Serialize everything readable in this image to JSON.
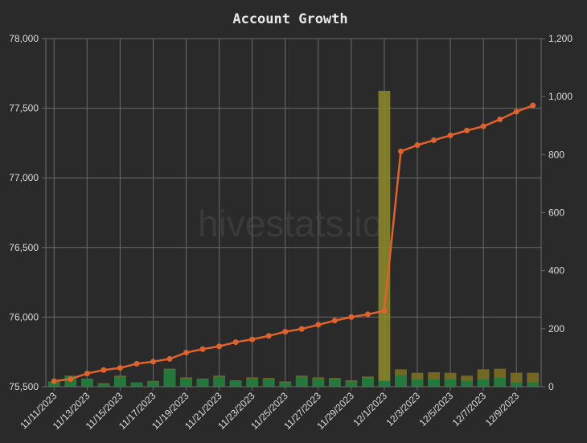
{
  "chart_data": {
    "type": "line",
    "title": "Account Growth",
    "watermark": "hivestats.io",
    "xlabel": "",
    "ylabel": "",
    "grid": true,
    "ylim": [
      75500,
      78000
    ],
    "y2lim": [
      0,
      1200
    ],
    "y_ticks": [
      "75,500",
      "76,000",
      "76,500",
      "77,000",
      "77,500",
      "78,000"
    ],
    "y2_ticks": [
      "0",
      "200",
      "400",
      "600",
      "800",
      "1,000",
      "1,200"
    ],
    "x_tick_labels": [
      "11/11/2023",
      "11/13/2023",
      "11/15/2023",
      "11/17/2023",
      "11/19/2023",
      "11/21/2023",
      "11/23/2023",
      "11/25/2023",
      "11/27/2023",
      "11/29/2023",
      "12/1/2023",
      "12/3/2023",
      "12/5/2023",
      "12/7/2023",
      "12/9/2023"
    ],
    "categories": [
      "11/11/2023",
      "11/12/2023",
      "11/13/2023",
      "11/14/2023",
      "11/15/2023",
      "11/16/2023",
      "11/17/2023",
      "11/18/2023",
      "11/19/2023",
      "11/20/2023",
      "11/21/2023",
      "11/22/2023",
      "11/23/2023",
      "11/24/2023",
      "11/25/2023",
      "11/26/2023",
      "11/27/2023",
      "11/28/2023",
      "11/29/2023",
      "11/30/2023",
      "12/1/2023",
      "12/2/2023",
      "12/3/2023",
      "12/4/2023",
      "12/5/2023",
      "12/6/2023",
      "12/7/2023",
      "12/8/2023",
      "12/9/2023",
      "12/10/2023"
    ],
    "colors": {
      "line": "#e0622c",
      "bar_green": "#1f7a3e",
      "bar_gold": "#7a6f22",
      "bar_highlight": "#8d8a2a",
      "grid": "#6a6a6a",
      "background": "#2a2a2b"
    },
    "series": [
      {
        "axis": "left",
        "kind": "line",
        "values": [
          75540,
          75555,
          75595,
          75620,
          75635,
          75665,
          75680,
          75700,
          75745,
          75770,
          75790,
          75820,
          75840,
          75865,
          75895,
          75915,
          75945,
          75975,
          76000,
          76020,
          76045,
          77190,
          77235,
          77270,
          77305,
          77340,
          77370,
          77420,
          77475,
          77520
        ]
      },
      {
        "axis": "right",
        "kind": "bar",
        "values": [
          18,
          38,
          28,
          12,
          38,
          15,
          20,
          62,
          32,
          28,
          38,
          22,
          32,
          30,
          18,
          38,
          32,
          30,
          22,
          35,
          1020,
          60,
          48,
          50,
          48,
          38,
          60,
          62,
          48,
          48
        ]
      },
      {
        "axis": "right",
        "kind": "bar",
        "values": [
          18,
          36,
          26,
          10,
          34,
          14,
          18,
          58,
          28,
          26,
          34,
          20,
          28,
          26,
          14,
          34,
          28,
          26,
          18,
          30,
          20,
          40,
          25,
          25,
          25,
          20,
          25,
          30,
          15,
          15
        ]
      }
    ]
  }
}
